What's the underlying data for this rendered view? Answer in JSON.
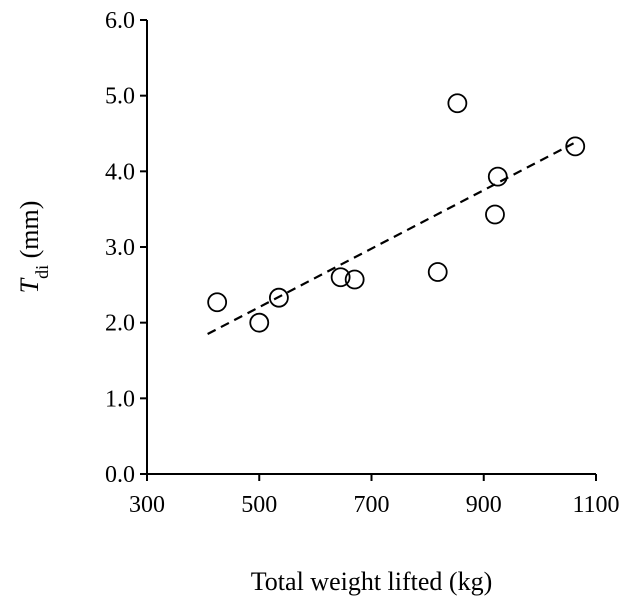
{
  "chart_data": {
    "type": "scatter",
    "title": "",
    "xlabel": "Total weight lifted (kg)",
    "ylabel_main": "T",
    "ylabel_sub": "di",
    "ylabel_rest": " (mm)",
    "xlim": [
      300,
      1100
    ],
    "ylim": [
      0.0,
      6.0
    ],
    "x_ticks": [
      300,
      500,
      700,
      900,
      1100
    ],
    "x_tick_labels": [
      "300",
      "500",
      "700",
      "900",
      "1100"
    ],
    "y_ticks": [
      0,
      1,
      2,
      3,
      4,
      5,
      6
    ],
    "y_tick_labels": [
      "0.0",
      "1.0",
      "2.0",
      "3.0",
      "4.0",
      "5.0",
      "6.0"
    ],
    "grid": false,
    "legend": "none",
    "series": [
      {
        "marker": "open-circle",
        "points": [
          {
            "x": 425,
            "y": 2.27
          },
          {
            "x": 500,
            "y": 2.0
          },
          {
            "x": 535,
            "y": 2.33
          },
          {
            "x": 645,
            "y": 2.6
          },
          {
            "x": 670,
            "y": 2.57
          },
          {
            "x": 818,
            "y": 2.67
          },
          {
            "x": 853,
            "y": 4.9
          },
          {
            "x": 920,
            "y": 3.43
          },
          {
            "x": 925,
            "y": 3.93
          },
          {
            "x": 1063,
            "y": 4.33
          }
        ]
      }
    ],
    "trendline": {
      "style": "dashed",
      "x1": 408,
      "y1": 1.85,
      "x2": 1060,
      "y2": 4.37
    }
  }
}
